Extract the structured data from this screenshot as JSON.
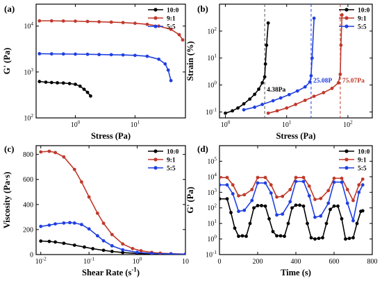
{
  "chart_data": [
    {
      "panel_label": "(a)",
      "type": "line",
      "xlabel": "Stress (Pa)",
      "ylabel": "G' (Pa)",
      "xscale": "log",
      "yscale": "log",
      "xlim": [
        0.22,
        70
      ],
      "ylim": [
        100,
        30000
      ],
      "xticks": [
        1,
        10
      ],
      "xtick_labels": [
        "10^0",
        "10^1"
      ],
      "yticks": [
        100,
        1000,
        10000
      ],
      "ytick_labels": [
        "10^2",
        "10^3",
        "10^4"
      ],
      "legend_position": "top-right",
      "series": [
        {
          "name": "10:0",
          "color": "#000000",
          "x": [
            0.25,
            0.32,
            0.4,
            0.5,
            0.63,
            0.8,
            1.0,
            1.2,
            1.4,
            1.6,
            1.8
          ],
          "y": [
            620,
            600,
            590,
            580,
            575,
            560,
            540,
            490,
            420,
            360,
            300
          ]
        },
        {
          "name": "9:1",
          "color": "#c0392b",
          "x": [
            0.25,
            0.4,
            0.63,
            1.0,
            1.6,
            2.5,
            4,
            6.3,
            10,
            16,
            25,
            40,
            55,
            63
          ],
          "y": [
            13000,
            13000,
            12900,
            12800,
            12600,
            12400,
            12200,
            11900,
            11500,
            10900,
            10000,
            8500,
            6500,
            5000
          ]
        },
        {
          "name": "5:5",
          "color": "#1f3fe0",
          "x": [
            0.25,
            0.4,
            0.63,
            1.0,
            1.6,
            2.5,
            4,
            6.3,
            10,
            16,
            25,
            32,
            36,
            40
          ],
          "y": [
            2500,
            2480,
            2470,
            2450,
            2430,
            2400,
            2380,
            2350,
            2300,
            2200,
            1900,
            1500,
            1100,
            650
          ]
        }
      ]
    },
    {
      "panel_label": "(b)",
      "type": "line",
      "xlabel": "Stress (Pa)",
      "ylabel": "Strain (%)",
      "xscale": "log",
      "yscale": "log",
      "xlim": [
        0.8,
        250
      ],
      "ylim": [
        0.06,
        1000
      ],
      "xticks": [
        1,
        10,
        100
      ],
      "xtick_labels": [
        "10^0",
        "10^1",
        "10^2"
      ],
      "yticks": [
        0.1,
        1,
        10,
        100
      ],
      "ytick_labels": [
        "10^-1",
        "10^0",
        "10^1",
        "10^2"
      ],
      "legend_position": "top-right",
      "vlines": [
        {
          "x": 4.38,
          "color": "#555555"
        },
        {
          "x": 25.08,
          "color": "#1f3fe0"
        },
        {
          "x": 75.07,
          "color": "#c0392b"
        }
      ],
      "annotations": [
        {
          "text": "4.38Pa",
          "x": 4.38,
          "y": 0.5,
          "color": "#000000"
        },
        {
          "text": "25.08P",
          "x": 25.08,
          "y": 1.1,
          "color": "#1f3fe0"
        },
        {
          "text": "75.07Pa",
          "x": 75.07,
          "y": 1.1,
          "color": "#c0392b"
        }
      ],
      "series": [
        {
          "name": "10:0",
          "color": "#000000",
          "x": [
            1.0,
            1.3,
            1.6,
            2.0,
            2.5,
            3.0,
            3.5,
            4.0,
            4.38,
            4.5,
            4.7,
            5.0
          ],
          "y": [
            0.09,
            0.11,
            0.14,
            0.2,
            0.3,
            0.45,
            0.7,
            1.2,
            2.0,
            6,
            30,
            200
          ]
        },
        {
          "name": "9:1",
          "color": "#c0392b",
          "x": [
            5,
            7,
            10,
            14,
            20,
            28,
            40,
            55,
            70,
            75,
            77,
            80
          ],
          "y": [
            0.09,
            0.11,
            0.14,
            0.19,
            0.27,
            0.38,
            0.52,
            0.75,
            1.2,
            2.5,
            30,
            400
          ]
        },
        {
          "name": "5:5",
          "color": "#1f3fe0",
          "x": [
            2,
            3,
            4,
            6,
            8,
            11,
            15,
            20,
            24,
            25.08,
            26,
            28
          ],
          "y": [
            0.12,
            0.15,
            0.19,
            0.26,
            0.33,
            0.44,
            0.6,
            0.85,
            1.3,
            2.2,
            10,
            300
          ]
        }
      ]
    },
    {
      "panel_label": "(c)",
      "type": "line",
      "xlabel": "Shear Rate (s^-1)",
      "ylabel": "Viscosity (Pa·s)",
      "xscale": "log",
      "yscale": "linear",
      "xlim": [
        0.008,
        10
      ],
      "ylim": [
        0,
        870
      ],
      "xticks": [
        0.01,
        0.1,
        1,
        10
      ],
      "xtick_labels": [
        "10^-2",
        "10^-1",
        "10^0",
        "10"
      ],
      "yticks": [
        0,
        200,
        400,
        600,
        800
      ],
      "ytick_labels": [
        "0",
        "200",
        "400",
        "600",
        "800"
      ],
      "legend_position": "top-right",
      "series": [
        {
          "name": "10:0",
          "color": "#000000",
          "x": [
            0.01,
            0.015,
            0.02,
            0.03,
            0.05,
            0.08,
            0.12,
            0.2,
            0.3,
            0.5,
            1,
            2,
            5,
            10
          ],
          "y": [
            108,
            105,
            100,
            90,
            75,
            60,
            47,
            34,
            25,
            16,
            9,
            5,
            3,
            2
          ]
        },
        {
          "name": "9:1",
          "color": "#c0392b",
          "x": [
            0.01,
            0.015,
            0.02,
            0.03,
            0.05,
            0.07,
            0.1,
            0.15,
            0.2,
            0.3,
            0.5,
            0.8,
            1.2,
            2,
            3,
            5,
            10
          ],
          "y": [
            820,
            825,
            815,
            780,
            680,
            580,
            460,
            330,
            250,
            160,
            85,
            48,
            30,
            17,
            11,
            7,
            4
          ]
        },
        {
          "name": "5:5",
          "color": "#1f3fe0",
          "x": [
            0.01,
            0.015,
            0.02,
            0.03,
            0.04,
            0.05,
            0.07,
            0.1,
            0.15,
            0.2,
            0.3,
            0.5,
            1,
            2,
            5,
            10
          ],
          "y": [
            225,
            235,
            245,
            252,
            255,
            252,
            240,
            205,
            150,
            110,
            70,
            38,
            18,
            9,
            5,
            3
          ]
        }
      ]
    },
    {
      "panel_label": "(d)",
      "type": "line",
      "xlabel": "Time (s)",
      "ylabel": "G' (Pa)",
      "xscale": "linear",
      "yscale": "log",
      "xlim": [
        0,
        800
      ],
      "ylim": [
        0.1,
        1000000
      ],
      "xticks": [
        0,
        200,
        400,
        600,
        800
      ],
      "xtick_labels": [
        "0",
        "200",
        "400",
        "600",
        "800"
      ],
      "yticks": [
        0.1,
        1,
        10,
        100,
        1000,
        10000,
        100000
      ],
      "ytick_labels": [
        "10^-1",
        "10^0",
        "10^1",
        "10^2",
        "10^3",
        "10^4",
        "10^5"
      ],
      "legend_position": "top-right",
      "series": [
        {
          "name": "10:0",
          "color": "#000000",
          "x": [
            0,
            40,
            60,
            80,
            100,
            120,
            140,
            160,
            180,
            200,
            220,
            240,
            260,
            280,
            300,
            320,
            340,
            360,
            380,
            400,
            420,
            440,
            460,
            480,
            500,
            520,
            540,
            560,
            580,
            600,
            620,
            640,
            660,
            680,
            700,
            720,
            740,
            750
          ],
          "y": [
            380,
            380,
            50,
            5,
            1.5,
            1.6,
            1.5,
            10,
            100,
            140,
            140,
            130,
            20,
            3,
            1.6,
            1.6,
            1.5,
            10,
            100,
            150,
            150,
            130,
            10,
            1.2,
            1.0,
            1.1,
            1.2,
            10,
            80,
            130,
            130,
            20,
            1.0,
            1.1,
            1.2,
            10,
            60,
            65
          ]
        },
        {
          "name": "9:1",
          "color": "#c0392b",
          "x": [
            0,
            40,
            70,
            100,
            130,
            170,
            200,
            240,
            270,
            300,
            330,
            370,
            400,
            440,
            470,
            500,
            530,
            570,
            600,
            640,
            670,
            700,
            730,
            750
          ],
          "y": [
            9000,
            9000,
            3000,
            600,
            700,
            1500,
            9000,
            9000,
            3000,
            500,
            550,
            1500,
            9000,
            9000,
            2500,
            350,
            400,
            1300,
            8000,
            8000,
            1500,
            300,
            3000,
            7000
          ]
        },
        {
          "name": "5:5",
          "color": "#1f3fe0",
          "x": [
            0,
            40,
            70,
            100,
            130,
            170,
            200,
            240,
            270,
            300,
            330,
            370,
            400,
            440,
            470,
            500,
            530,
            570,
            600,
            640,
            670,
            700,
            730,
            750
          ],
          "y": [
            3000,
            3000,
            800,
            60,
            70,
            300,
            4000,
            4000,
            900,
            35,
            40,
            250,
            5000,
            5000,
            600,
            25,
            30,
            200,
            4500,
            4500,
            200,
            15,
            1000,
            3000
          ]
        }
      ]
    }
  ]
}
